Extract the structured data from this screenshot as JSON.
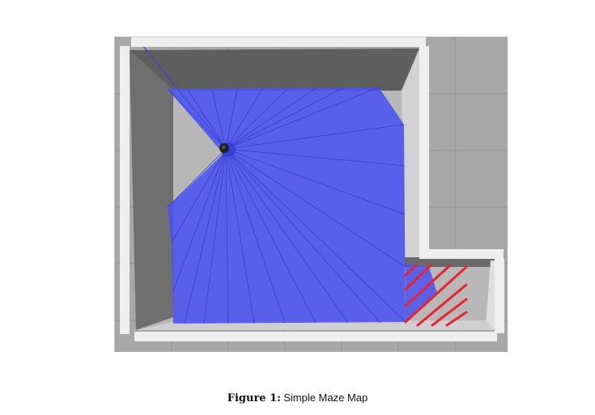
{
  "figure": {
    "label": "Figure 1:",
    "caption": "Simple Maze Map",
    "colors": {
      "ground": "#a8a8a8",
      "grid_line": "#8f8f8f",
      "floor": "#b3b3b3",
      "wall_top": "#efefef",
      "wall_shadow": "#6b6b6b",
      "wall_face_light": "#d6d6d6",
      "scan_fill": "#4a52f0",
      "scan_ray": "#2b33c8",
      "robot": "#222222",
      "goal_hatch": "#e8232b"
    },
    "icons": [
      "robot-icon",
      "goal-hatch-icon"
    ]
  }
}
